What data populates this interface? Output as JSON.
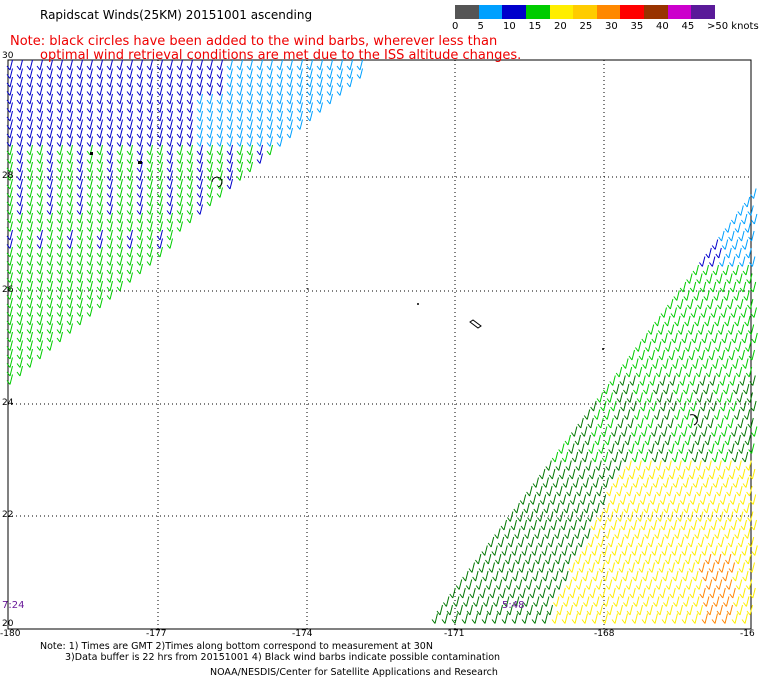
{
  "title": "Rapidscat Winds(25KM) 20151001 ascending",
  "note_line1": "Note: black circles have been added to the wind barbs, wherever less than",
  "note_line2": "optimal wind retrieval conditions are met due to the ISS altitude changes.",
  "legend": {
    "labels": [
      "0",
      "5",
      "10",
      "15",
      "20",
      "25",
      "30",
      "35",
      "40",
      "45",
      ">50 knots"
    ],
    "colors": [
      "#555555",
      "#00a0ff",
      "#0000cc",
      "#00cc00",
      "#ffee00",
      "#ffcc00",
      "#ff8800",
      "#ff0000",
      "#993300",
      "#cc00cc",
      "#5a1a99"
    ]
  },
  "lat_labels": [
    "30",
    "28",
    "26",
    "24",
    "22",
    "20"
  ],
  "lon_labels": [
    "-180",
    "-177",
    "-174",
    "-171",
    "-168",
    "-16"
  ],
  "time_left": "7:24",
  "time_right": "5:48",
  "footer": {
    "line1": "Note: 1) Times are GMT 2)Times along bottom correspond to measurement at 30N",
    "line2": "3)Data buffer is 22 hrs from 20151001 4) Black wind barbs indicate possible contamination",
    "line3": "NOAA/NESDIS/Center for Satellite Applications and Research"
  },
  "colors": {
    "cyan": "#00a0ff",
    "blue": "#0000cc",
    "green": "#00cc00",
    "darkgreen": "#007700",
    "yellow": "#ffee00",
    "orange": "#ff8800"
  }
}
